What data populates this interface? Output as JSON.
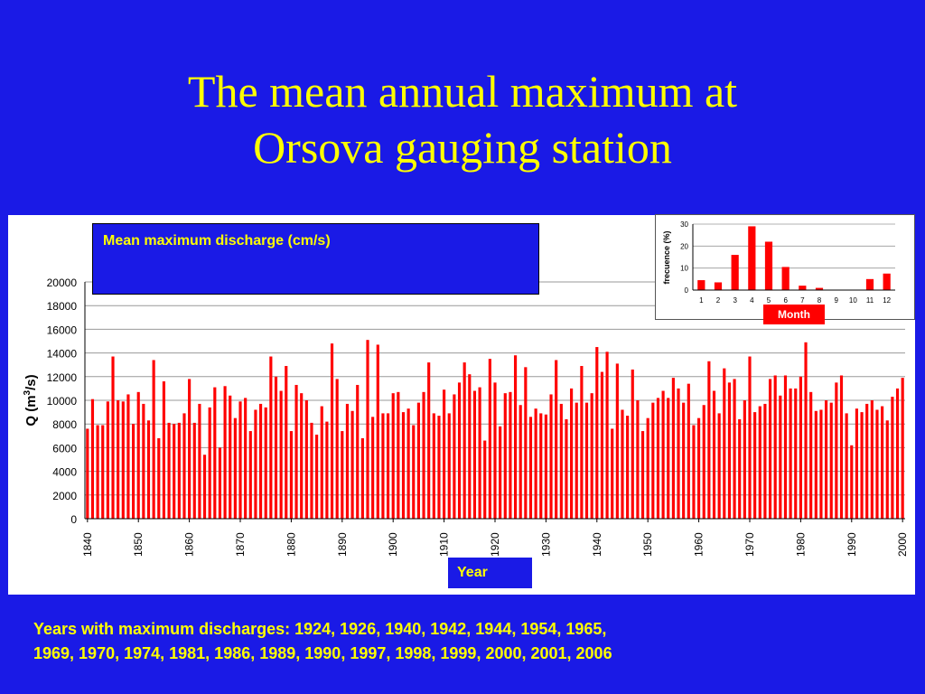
{
  "title": {
    "line1": "The mean annual maximum at",
    "line2": "Orsova gauging station"
  },
  "legend_text": "Mean maximum discharge (cm/s)",
  "year_label": "Year",
  "month_label": "Month",
  "footnote": {
    "line1": "Years with maximum discharges: 1924, 1926, 1940, 1942, 1944, 1954, 1965,",
    "line2": "1969, 1970, 1974, 1981, 1986, 1989, 1990, 1997, 1998, 1999, 2000, 2001, 2006"
  },
  "colors": {
    "background": "#1a1ae6",
    "title": "#ffff00",
    "bar": "#ff0000",
    "grid": "#999999"
  },
  "chart_data": [
    {
      "type": "bar",
      "ylabel": "Q (m³/s)",
      "ylabel_parts": {
        "prefix": "Q (m",
        "sup": "3",
        "suffix": "/s)"
      },
      "ylim": [
        0,
        20000
      ],
      "yticks": [
        0,
        2000,
        4000,
        6000,
        8000,
        10000,
        12000,
        14000,
        16000,
        18000,
        20000
      ],
      "xticks": [
        1840,
        1850,
        1860,
        1870,
        1880,
        1890,
        1900,
        1910,
        1920,
        1930,
        1940,
        1950,
        1960,
        1970,
        1980,
        1990,
        2000
      ],
      "grid": "horizontal",
      "x_start": 1840,
      "values": [
        7600,
        10100,
        7900,
        7900,
        9900,
        13700,
        10000,
        9900,
        10500,
        8000,
        10700,
        9700,
        8300,
        13400,
        6800,
        11600,
        8100,
        8000,
        8100,
        8900,
        11800,
        8100,
        9700,
        5400,
        9400,
        11100,
        6000,
        11200,
        10400,
        8500,
        9900,
        10200,
        7400,
        9200,
        9700,
        9400,
        13700,
        12000,
        10800,
        12900,
        7400,
        11300,
        10600,
        10000,
        8100,
        7100,
        9500,
        8200,
        14800,
        11800,
        7400,
        9700,
        9100,
        11300,
        6800,
        15100,
        8600,
        14700,
        8900,
        8900,
        10600,
        10700,
        9000,
        9300,
        7900,
        9800,
        10700,
        13200,
        8900,
        8700,
        10900,
        8900,
        10500,
        11500,
        13200,
        12200,
        10800,
        11100,
        6600,
        13500,
        11500,
        7800,
        10600,
        10700,
        13800,
        9600,
        12800,
        8600,
        9300,
        8900,
        8800,
        10500,
        13400,
        9700,
        8400,
        11000,
        9800,
        12900,
        9800,
        10600,
        14500,
        12400,
        14100,
        7600,
        13100,
        9200,
        8700,
        12600,
        10000,
        7400,
        8500,
        9800,
        10200,
        10800,
        10200,
        11900,
        11000,
        9800,
        11400,
        7900,
        8500,
        9600,
        13300,
        10800,
        8900,
        12700,
        11500,
        11800,
        8400,
        10000,
        13700,
        9000,
        9500,
        9700,
        11800,
        12100,
        10400,
        12100,
        11000,
        11000,
        12000,
        14900,
        10700,
        9100,
        9200,
        10000,
        9800,
        11500,
        12100,
        8900,
        6200,
        9300,
        9000,
        9700,
        10000,
        9200,
        9500,
        8300,
        10300,
        11000,
        11900
      ]
    },
    {
      "type": "bar",
      "ylabel": "frecuence (%)",
      "xlabel": "Month",
      "ylim": [
        0,
        30
      ],
      "yticks": [
        0,
        10,
        20,
        30
      ],
      "grid": "horizontal",
      "categories": [
        "1",
        "2",
        "3",
        "4",
        "5",
        "6",
        "7",
        "8",
        "9",
        "10",
        "11",
        "12"
      ],
      "values": [
        4.5,
        3.5,
        16,
        29,
        22,
        10.5,
        2,
        1,
        0,
        0,
        5,
        7.5
      ]
    }
  ]
}
